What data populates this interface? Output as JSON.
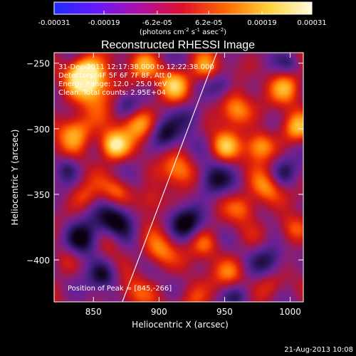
{
  "chart_data": {
    "type": "heatmap",
    "title": "Reconstructed RHESSI Image",
    "xlabel": "Heliocentric X (arcsec)",
    "ylabel": "Heliocentric Y (arcsec)",
    "x_ticks": [
      850,
      900,
      950,
      1000
    ],
    "y_ticks": [
      -250,
      -300,
      -350,
      -400
    ],
    "xlim": [
      820,
      1010
    ],
    "ylim": [
      -432,
      -242
    ],
    "colorbar": {
      "ticks": [
        "-0.00031",
        "-0.00019",
        "-6.2e-05",
        "6.2e-05",
        "0.00019",
        "0.00031"
      ],
      "range": [
        -0.00031,
        0.00031
      ],
      "unit_parts": [
        "(photons cm",
        "-2",
        " s",
        "-1",
        " asec",
        "-2",
        ")"
      ],
      "colors": [
        "#1e2cff",
        "#6a18ff",
        "#b010a0",
        "#e0102c",
        "#ff6a00",
        "#ffd23a",
        "#fffbe0"
      ]
    },
    "info_lines": [
      "31-Dec-2011 12:17:38.000 to 12:22:38.000",
      "Detectors: 4F 5F 6F 7F 8F, Att 0",
      "Energy Range: 12.0 - 25.0 keV",
      "Clean.   Total counts: 2.95E+04"
    ],
    "peak_text": "Position of Peak = [845,-266]",
    "limb_line": [
      [
        872,
        -432
      ],
      [
        944,
        -242
      ]
    ],
    "palette": [
      "#0b0012",
      "#25104e",
      "#42207e",
      "#6a2196",
      "#8a1e72",
      "#b8142c",
      "#e0220a",
      "#ff5a00",
      "#ff9a12",
      "#ffc63a",
      "#fff0a8"
    ],
    "blobs": [
      {
        "x": 843,
        "y": -257,
        "s": 9,
        "a": 3.4
      },
      {
        "x": 836,
        "y": -302,
        "s": 10,
        "a": 2.6
      },
      {
        "x": 852,
        "y": -268,
        "s": 11,
        "a": 2.4
      },
      {
        "x": 865,
        "y": -313,
        "s": 8,
        "a": 3.3
      },
      {
        "x": 884,
        "y": -296,
        "s": 9,
        "a": 2.2
      },
      {
        "x": 912,
        "y": -266,
        "s": 9,
        "a": 2.2
      },
      {
        "x": 888,
        "y": -252,
        "s": 8,
        "a": 1.8
      },
      {
        "x": 935,
        "y": -254,
        "s": 8,
        "a": 1.9
      },
      {
        "x": 958,
        "y": -286,
        "s": 9,
        "a": 2.6
      },
      {
        "x": 977,
        "y": -313,
        "s": 8,
        "a": 2.5
      },
      {
        "x": 950,
        "y": -314,
        "s": 8,
        "a": 2.0
      },
      {
        "x": 998,
        "y": -268,
        "s": 9,
        "a": 2.3
      },
      {
        "x": 1005,
        "y": -300,
        "s": 8,
        "a": 2.1
      },
      {
        "x": 982,
        "y": -345,
        "s": 9,
        "a": 2.1
      },
      {
        "x": 1002,
        "y": -376,
        "s": 8,
        "a": 1.8
      },
      {
        "x": 915,
        "y": -332,
        "s": 9,
        "a": 1.9
      },
      {
        "x": 895,
        "y": -355,
        "s": 8,
        "a": 1.5
      },
      {
        "x": 868,
        "y": -347,
        "s": 8,
        "a": 1.5
      },
      {
        "x": 843,
        "y": -352,
        "s": 8,
        "a": 1.4
      },
      {
        "x": 900,
        "y": -394,
        "s": 9,
        "a": 1.9
      },
      {
        "x": 935,
        "y": -388,
        "s": 8,
        "a": 1.7
      },
      {
        "x": 955,
        "y": -410,
        "s": 9,
        "a": 1.6
      },
      {
        "x": 985,
        "y": -420,
        "s": 8,
        "a": 1.6
      },
      {
        "x": 965,
        "y": -360,
        "s": 8,
        "a": 1.6
      },
      {
        "x": 862,
        "y": -387,
        "s": 8,
        "a": 1.2
      },
      {
        "x": 828,
        "y": -400,
        "s": 8,
        "a": 1.1
      },
      {
        "x": 880,
        "y": -425,
        "s": 9,
        "a": 1.2
      },
      {
        "x": 925,
        "y": -430,
        "s": 9,
        "a": 1.4
      },
      {
        "x": 868,
        "y": -368,
        "s": 10,
        "a": -2.4
      },
      {
        "x": 842,
        "y": -385,
        "s": 10,
        "a": -2.6
      },
      {
        "x": 920,
        "y": -372,
        "s": 9,
        "a": -2.1
      },
      {
        "x": 905,
        "y": -305,
        "s": 8,
        "a": -1.8
      },
      {
        "x": 940,
        "y": -340,
        "s": 9,
        "a": -1.9
      },
      {
        "x": 925,
        "y": -290,
        "s": 8,
        "a": -1.6
      },
      {
        "x": 985,
        "y": -400,
        "s": 9,
        "a": -2.0
      },
      {
        "x": 995,
        "y": -335,
        "s": 8,
        "a": -1.7
      },
      {
        "x": 858,
        "y": -412,
        "s": 8,
        "a": -2.0
      },
      {
        "x": 960,
        "y": -428,
        "s": 8,
        "a": -1.8
      },
      {
        "x": 948,
        "y": -266,
        "s": 7,
        "a": -1.4
      },
      {
        "x": 876,
        "y": -282,
        "s": 7,
        "a": -1.3
      },
      {
        "x": 1000,
        "y": -250,
        "s": 6,
        "a": -1.2
      },
      {
        "x": 830,
        "y": -330,
        "s": 7,
        "a": -1.4
      }
    ]
  },
  "footer": {
    "date": "21-Aug-2013 10:08"
  }
}
